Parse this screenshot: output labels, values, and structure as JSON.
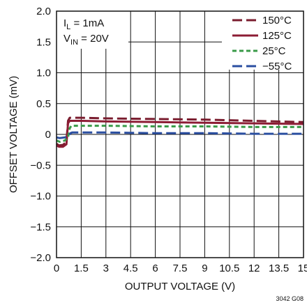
{
  "chart_data": {
    "type": "line",
    "xlabel": "OUTPUT VOLTAGE (V)",
    "ylabel": "OFFSET VOLTAGE (mV)",
    "xlim": [
      0,
      15
    ],
    "ylim": [
      -2.0,
      2.0
    ],
    "x_ticks": [
      0,
      1.5,
      3,
      4.5,
      6,
      7.5,
      9,
      10.5,
      12,
      13.5,
      15
    ],
    "x_tick_labels": [
      "0",
      "1.5",
      "3",
      "4.5",
      "6",
      "7.5",
      "9",
      "10.5",
      "12",
      "13.5",
      "15"
    ],
    "y_ticks": [
      2.0,
      1.5,
      1.0,
      0.5,
      0,
      -0.5,
      -1.0,
      -1.5,
      -2.0
    ],
    "y_tick_labels": [
      "2.0",
      "1.5",
      "1.0",
      "0.5",
      "0",
      "−0.5",
      "−1.0",
      "−1.5",
      "−2.0"
    ],
    "grid": true,
    "legend_position": "top-right",
    "annotations": {
      "il_main": "I",
      "il_sub": "L",
      "il_value": " = 1mA",
      "vin_main": "V",
      "vin_sub": "IN",
      "vin_value": " = 20V"
    },
    "figure_id": "3042 G08",
    "series": [
      {
        "name": "150°C",
        "color": "#7a1c2e",
        "dash": "long",
        "x": [
          0,
          0.15,
          0.4,
          0.6,
          0.7,
          0.8,
          1.5,
          3,
          6,
          9,
          12,
          15
        ],
        "y": [
          -0.15,
          -0.18,
          -0.17,
          -0.12,
          0.22,
          0.27,
          0.27,
          0.26,
          0.25,
          0.24,
          0.22,
          0.2
        ]
      },
      {
        "name": "125°C",
        "color": "#8c1c34",
        "dash": "solid",
        "x": [
          0,
          0.15,
          0.4,
          0.6,
          0.7,
          0.8,
          1.5,
          3,
          6,
          9,
          12,
          15
        ],
        "y": [
          -0.18,
          -0.2,
          -0.2,
          -0.16,
          0.18,
          0.22,
          0.22,
          0.21,
          0.2,
          0.19,
          0.18,
          0.17
        ]
      },
      {
        "name": "25°C",
        "color": "#3a9a48",
        "dash": "short",
        "x": [
          0,
          0.2,
          0.5,
          0.7,
          0.8,
          0.9,
          1.5,
          3,
          6,
          9,
          12,
          15
        ],
        "y": [
          -0.1,
          -0.12,
          -0.1,
          -0.05,
          0.1,
          0.14,
          0.14,
          0.14,
          0.13,
          0.13,
          0.12,
          0.12
        ]
      },
      {
        "name": "−55°C",
        "color": "#2a4ea0",
        "dash": "long",
        "x": [
          0,
          0.2,
          0.5,
          0.75,
          0.85,
          0.95,
          1.5,
          3,
          6,
          9,
          12,
          15
        ],
        "y": [
          -0.05,
          -0.06,
          -0.05,
          -0.02,
          0.02,
          0.03,
          0.03,
          0.03,
          0.02,
          0.02,
          0.01,
          0.01
        ]
      }
    ]
  }
}
